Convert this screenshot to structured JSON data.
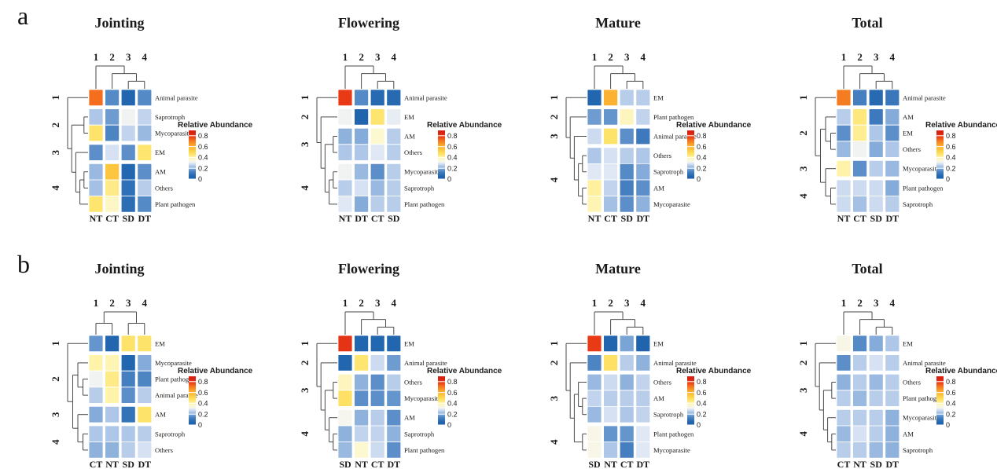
{
  "figure": {
    "band_a_label": "a",
    "band_b_label": "b",
    "background": "#ffffff",
    "text_color": "#1a1a1a",
    "dendrogram_color": "#4a4a4a"
  },
  "legend": {
    "title": "Relative Abundance",
    "ticks": [
      {
        "label": "0.8",
        "value": 0.8
      },
      {
        "label": "0.6",
        "value": 0.6
      },
      {
        "label": "0.4",
        "value": 0.4
      },
      {
        "label": "0.2",
        "value": 0.2
      },
      {
        "label": "0",
        "value": 0.0
      }
    ],
    "max_value": 0.898
  },
  "colormap": [
    [
      0.0,
      "#1a5fa8"
    ],
    [
      0.06,
      "#2367b0"
    ],
    [
      0.12,
      "#3d79bc"
    ],
    [
      0.17,
      "#6495cc"
    ],
    [
      0.21,
      "#8fb2dd"
    ],
    [
      0.25,
      "#b8cdea"
    ],
    [
      0.285,
      "#dbe5f4"
    ],
    [
      0.315,
      "#f5f5f1"
    ],
    [
      0.35,
      "#fcf9da"
    ],
    [
      0.4,
      "#fef3a9"
    ],
    [
      0.45,
      "#fee570"
    ],
    [
      0.51,
      "#fed64b"
    ],
    [
      0.57,
      "#febe38"
    ],
    [
      0.63,
      "#fba32b"
    ],
    [
      0.69,
      "#f68322"
    ],
    [
      0.74,
      "#f2601c"
    ],
    [
      0.78,
      "#e93a16"
    ],
    [
      0.85,
      "#d92111"
    ]
  ],
  "chart_data": {
    "type": "heatmap",
    "panels": [
      {
        "band": "a",
        "title": "Jointing",
        "col_labels": [
          "NT",
          "CT",
          "SD",
          "DT"
        ],
        "col_cluster_labels": [
          "1",
          "2",
          "3",
          "4"
        ],
        "row_labels": [
          "Animal parasite",
          "Saprotroph",
          "Mycoparasite",
          "EM",
          "AM",
          "Others",
          "Plant pathogen"
        ],
        "row_cluster_labels": [
          "1",
          "2",
          "3",
          "4"
        ],
        "row_cluster_spans": [
          [
            0,
            0
          ],
          [
            1,
            2
          ],
          [
            3,
            3
          ],
          [
            4,
            6
          ]
        ],
        "col_dendrogram": [
          0,
          [
            1,
            [
              2,
              3
            ]
          ]
        ],
        "row_dendrogram": [
          0,
          [
            [
              1,
              2
            ],
            [
              3,
              [
                [
                  4,
                  5
                ],
                6
              ]
            ]
          ]
        ],
        "values": [
          [
            0.72,
            0.15,
            0.05,
            0.15
          ],
          [
            0.24,
            0.18,
            0.31,
            0.26
          ],
          [
            0.46,
            0.14,
            0.26,
            0.22
          ],
          [
            0.16,
            0.28,
            0.16,
            0.45
          ],
          [
            0.22,
            0.55,
            0.06,
            0.16
          ],
          [
            0.23,
            0.43,
            0.09,
            0.25
          ],
          [
            0.45,
            0.37,
            0.08,
            0.15
          ]
        ]
      },
      {
        "band": "a",
        "title": "Flowering",
        "col_labels": [
          "NT",
          "DT",
          "CT",
          "SD"
        ],
        "col_cluster_labels": [
          "1",
          "2",
          "3",
          "4"
        ],
        "row_labels": [
          "Animal parasite",
          "EM",
          "AM",
          "Others",
          "Mycoparasite",
          "Saprotroph",
          "Plant pathogen"
        ],
        "row_cluster_labels": [
          "1",
          "2",
          "3",
          "4"
        ],
        "row_cluster_spans": [
          [
            0,
            0
          ],
          [
            1,
            1
          ],
          [
            2,
            3
          ],
          [
            4,
            6
          ]
        ],
        "col_dendrogram": [
          0,
          [
            1,
            [
              2,
              3
            ]
          ]
        ],
        "row_dendrogram": [
          0,
          [
            1,
            [
              [
                2,
                3
              ],
              [
                [
                  4,
                  5
                ],
                6
              ]
            ]
          ]
        ],
        "values": [
          [
            0.78,
            0.15,
            0.07,
            0.07
          ],
          [
            0.31,
            0.04,
            0.45,
            0.3
          ],
          [
            0.21,
            0.2,
            0.36,
            0.25
          ],
          [
            0.24,
            0.24,
            0.29,
            0.25
          ],
          [
            0.31,
            0.22,
            0.16,
            0.25
          ],
          [
            0.25,
            0.28,
            0.22,
            0.25
          ],
          [
            0.29,
            0.2,
            0.25,
            0.25
          ]
        ]
      },
      {
        "band": "a",
        "title": "Mature",
        "col_labels": [
          "NT",
          "CT",
          "SD",
          "DT"
        ],
        "col_cluster_labels": [
          "1",
          "2",
          "3",
          "4"
        ],
        "row_labels": [
          "EM",
          "Plant pathogen",
          "Animal parasite",
          "Others",
          "Saprotroph",
          "AM",
          "Mycoparasite"
        ],
        "row_cluster_labels": [
          "1",
          "2",
          "3",
          "4"
        ],
        "row_cluster_spans": [
          [
            0,
            0
          ],
          [
            1,
            1
          ],
          [
            2,
            2
          ],
          [
            3,
            6
          ]
        ],
        "col_dendrogram": [
          0,
          [
            1,
            [
              2,
              3
            ]
          ]
        ],
        "row_dendrogram": [
          0,
          [
            1,
            [
              2,
              [
                [
                  3,
                  4
                ],
                [
                  5,
                  6
                ]
              ]
            ]
          ]
        ],
        "values": [
          [
            0.05,
            0.6,
            0.25,
            0.25
          ],
          [
            0.18,
            0.17,
            0.38,
            0.26
          ],
          [
            0.27,
            0.46,
            0.16,
            0.12
          ],
          [
            0.24,
            0.28,
            0.25,
            0.24
          ],
          [
            0.29,
            0.29,
            0.15,
            0.2
          ],
          [
            0.41,
            0.26,
            0.13,
            0.16
          ],
          [
            0.39,
            0.23,
            0.16,
            0.21
          ]
        ]
      },
      {
        "band": "a",
        "title": "Total",
        "col_labels": [
          "NT",
          "CT",
          "SD",
          "DT"
        ],
        "col_cluster_labels": [
          "1",
          "2",
          "3",
          "4"
        ],
        "row_labels": [
          "Animal parasite",
          "AM",
          "EM",
          "Others",
          "Mycoparasite",
          "Plant pathogen",
          "Saprotroph"
        ],
        "row_cluster_labels": [
          "1",
          "2",
          "3",
          "4"
        ],
        "row_cluster_spans": [
          [
            0,
            0
          ],
          [
            1,
            3
          ],
          [
            4,
            4
          ],
          [
            5,
            6
          ]
        ],
        "col_dendrogram": [
          0,
          [
            1,
            [
              2,
              3
            ]
          ]
        ],
        "row_dendrogram": [
          0,
          [
            [
              1,
              [
                2,
                3
              ]
            ],
            [
              4,
              [
                5,
                6
              ]
            ]
          ]
        ],
        "values": [
          [
            0.7,
            0.13,
            0.07,
            0.11
          ],
          [
            0.25,
            0.44,
            0.12,
            0.2
          ],
          [
            0.16,
            0.42,
            0.24,
            0.16
          ],
          [
            0.22,
            0.31,
            0.2,
            0.24
          ],
          [
            0.4,
            0.16,
            0.25,
            0.22
          ],
          [
            0.27,
            0.27,
            0.27,
            0.2
          ],
          [
            0.27,
            0.23,
            0.27,
            0.25
          ]
        ]
      },
      {
        "band": "b",
        "title": "Jointing",
        "col_labels": [
          "CT",
          "NT",
          "SD",
          "DT"
        ],
        "col_cluster_labels": [
          "1",
          "2",
          "3",
          "4"
        ],
        "row_labels": [
          "EM",
          "Mycoparasite",
          "Plant pathogen",
          "Animal parasite",
          "AM",
          "Saprotroph",
          "Others"
        ],
        "row_cluster_labels": [
          "1",
          "2",
          "3",
          "4"
        ],
        "row_cluster_spans": [
          [
            0,
            0
          ],
          [
            1,
            3
          ],
          [
            4,
            4
          ],
          [
            5,
            6
          ]
        ],
        "col_dendrogram": [
          [
            0,
            1
          ],
          [
            2,
            3
          ]
        ],
        "row_dendrogram": [
          0,
          [
            [
              1,
              [
                2,
                3
              ]
            ],
            [
              4,
              [
                5,
                6
              ]
            ]
          ]
        ],
        "values": [
          [
            0.17,
            0.05,
            0.46,
            0.46
          ],
          [
            0.4,
            0.39,
            0.05,
            0.2
          ],
          [
            0.31,
            0.43,
            0.13,
            0.14
          ],
          [
            0.25,
            0.4,
            0.16,
            0.25
          ],
          [
            0.2,
            0.24,
            0.1,
            0.46
          ],
          [
            0.24,
            0.24,
            0.24,
            0.25
          ],
          [
            0.21,
            0.21,
            0.25,
            0.28
          ]
        ]
      },
      {
        "band": "b",
        "title": "Flowering",
        "col_labels": [
          "SD",
          "NT",
          "CT",
          "DT"
        ],
        "col_cluster_labels": [
          "1",
          "2",
          "3",
          "4"
        ],
        "row_labels": [
          "EM",
          "Animal parasite",
          "Others",
          "Mycoparasite",
          "AM",
          "Saprotroph",
          "Plant pathogen"
        ],
        "row_cluster_labels": [
          "1",
          "2",
          "3",
          "4"
        ],
        "row_cluster_spans": [
          [
            0,
            0
          ],
          [
            1,
            1
          ],
          [
            2,
            3
          ],
          [
            4,
            6
          ]
        ],
        "col_dendrogram": [
          0,
          [
            1,
            [
              2,
              3
            ]
          ]
        ],
        "row_dendrogram": [
          0,
          [
            1,
            [
              [
                2,
                3
              ],
              [
                4,
                [
                  5,
                  6
                ]
              ]
            ]
          ]
        ],
        "values": [
          [
            0.8,
            0.05,
            0.06,
            0.05
          ],
          [
            0.05,
            0.45,
            0.27,
            0.18
          ],
          [
            0.38,
            0.21,
            0.16,
            0.25
          ],
          [
            0.47,
            0.16,
            0.16,
            0.17
          ],
          [
            0.32,
            0.21,
            0.25,
            0.16
          ],
          [
            0.21,
            0.26,
            0.26,
            0.21
          ],
          [
            0.22,
            0.36,
            0.27,
            0.16
          ]
        ]
      },
      {
        "band": "b",
        "title": "Mature",
        "col_labels": [
          "SD",
          "NT",
          "CT",
          "DT"
        ],
        "col_cluster_labels": [
          "1",
          "2",
          "3",
          "4"
        ],
        "row_labels": [
          "EM",
          "Animal parasite",
          "Others",
          "AM",
          "Saprotroph",
          "Plant pathogen",
          "Mycoparasite"
        ],
        "row_cluster_labels": [
          "1",
          "2",
          "3",
          "4"
        ],
        "row_cluster_spans": [
          [
            0,
            0
          ],
          [
            1,
            1
          ],
          [
            2,
            4
          ],
          [
            5,
            6
          ]
        ],
        "col_dendrogram": [
          0,
          [
            1,
            [
              2,
              3
            ]
          ]
        ],
        "row_dendrogram": [
          0,
          [
            1,
            [
              [
                2,
                [
                  3,
                  4
                ]
              ],
              [
                5,
                6
              ]
            ]
          ]
        ],
        "values": [
          [
            0.78,
            0.05,
            0.19,
            0.04
          ],
          [
            0.14,
            0.47,
            0.25,
            0.21
          ],
          [
            0.22,
            0.27,
            0.21,
            0.26
          ],
          [
            0.26,
            0.25,
            0.25,
            0.25
          ],
          [
            0.22,
            0.28,
            0.24,
            0.26
          ],
          [
            0.33,
            0.17,
            0.17,
            0.29
          ],
          [
            0.33,
            0.24,
            0.13,
            0.29
          ]
        ]
      },
      {
        "band": "b",
        "title": "Total",
        "col_labels": [
          "CT",
          "NT",
          "SD",
          "DT"
        ],
        "col_cluster_labels": [
          "1",
          "2",
          "3",
          "4"
        ],
        "row_labels": [
          "EM",
          "Animal parasite",
          "Others",
          "Plant pathogen",
          "Mycoparasite",
          "AM",
          "Saprotroph"
        ],
        "row_cluster_labels": [
          "1",
          "2",
          "3",
          "4"
        ],
        "row_cluster_spans": [
          [
            0,
            0
          ],
          [
            1,
            1
          ],
          [
            2,
            3
          ],
          [
            4,
            6
          ]
        ],
        "col_dendrogram": [
          0,
          [
            1,
            [
              2,
              3
            ]
          ]
        ],
        "row_dendrogram": [
          0,
          [
            1,
            [
              [
                2,
                3
              ],
              [
                4,
                [
                  5,
                  6
                ]
              ]
            ]
          ]
        ],
        "values": [
          [
            0.33,
            0.15,
            0.2,
            0.24
          ],
          [
            0.16,
            0.25,
            0.28,
            0.25
          ],
          [
            0.21,
            0.25,
            0.22,
            0.25
          ],
          [
            0.25,
            0.22,
            0.25,
            0.25
          ],
          [
            0.25,
            0.25,
            0.25,
            0.21
          ],
          [
            0.22,
            0.28,
            0.25,
            0.21
          ],
          [
            0.25,
            0.25,
            0.22,
            0.21
          ]
        ]
      }
    ]
  }
}
